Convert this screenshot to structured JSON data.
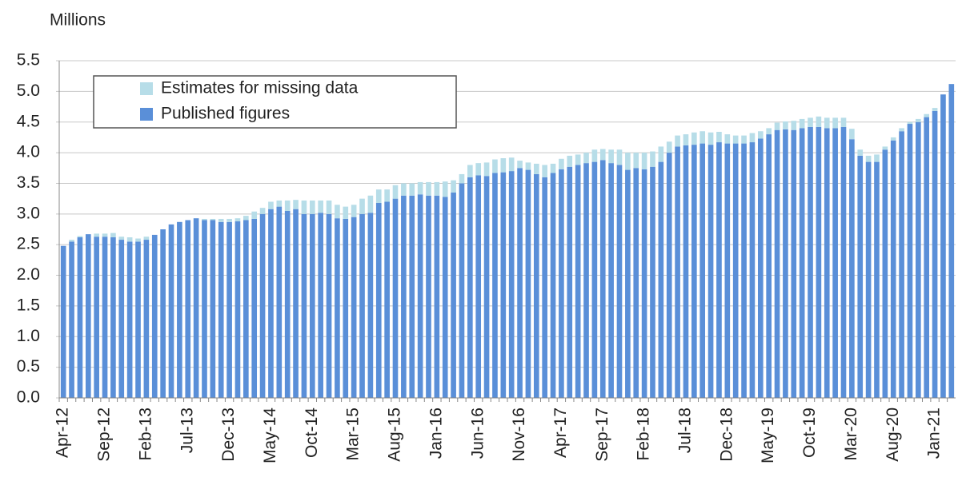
{
  "chart_data": {
    "type": "stacked_bar",
    "y_label": "Millions",
    "categories": [
      "Apr-12",
      null,
      null,
      null,
      null,
      "Sep-12",
      null,
      null,
      null,
      null,
      "Feb-13",
      null,
      null,
      null,
      null,
      "Jul-13",
      null,
      null,
      null,
      null,
      "Dec-13",
      null,
      null,
      null,
      null,
      "May-14",
      null,
      null,
      null,
      null,
      "Oct-14",
      null,
      null,
      null,
      null,
      "Mar-15",
      null,
      null,
      null,
      null,
      "Aug-15",
      null,
      null,
      null,
      null,
      "Jan-16",
      null,
      null,
      null,
      null,
      "Jun-16",
      null,
      null,
      null,
      null,
      "Nov-16",
      null,
      null,
      null,
      null,
      "Apr-17",
      null,
      null,
      null,
      null,
      "Sep-17",
      null,
      null,
      null,
      null,
      "Feb-18",
      null,
      null,
      null,
      null,
      "Jul-18",
      null,
      null,
      null,
      null,
      "Dec-18",
      null,
      null,
      null,
      null,
      "May-19",
      null,
      null,
      null,
      null,
      "Oct-19",
      null,
      null,
      null,
      null,
      "Mar-20",
      null,
      null,
      null,
      null,
      "Aug-20",
      null,
      null,
      null,
      null,
      "Jan-21",
      null,
      null
    ],
    "series": [
      {
        "name": "Published figures",
        "color": "#5a8fd8",
        "values": [
          2.48,
          2.55,
          2.62,
          2.67,
          2.63,
          2.63,
          2.62,
          2.58,
          2.55,
          2.55,
          2.58,
          2.66,
          2.75,
          2.83,
          2.87,
          2.9,
          2.93,
          2.9,
          2.9,
          2.87,
          2.87,
          2.88,
          2.9,
          2.92,
          3.0,
          3.08,
          3.12,
          3.05,
          3.08,
          3.0,
          3.0,
          3.02,
          3.0,
          2.93,
          2.92,
          2.95,
          3.0,
          3.02,
          3.18,
          3.2,
          3.25,
          3.3,
          3.3,
          3.32,
          3.3,
          3.3,
          3.28,
          3.35,
          3.5,
          3.6,
          3.63,
          3.62,
          3.67,
          3.68,
          3.7,
          3.75,
          3.72,
          3.65,
          3.6,
          3.67,
          3.73,
          3.77,
          3.8,
          3.83,
          3.85,
          3.88,
          3.83,
          3.8,
          3.72,
          3.75,
          3.73,
          3.77,
          3.85,
          4.0,
          4.1,
          4.12,
          4.13,
          4.15,
          4.13,
          4.17,
          4.15,
          4.15,
          4.15,
          4.17,
          4.23,
          4.3,
          4.37,
          4.38,
          4.37,
          4.4,
          4.42,
          4.42,
          4.4,
          4.4,
          4.42,
          4.22,
          3.95,
          3.85,
          3.85,
          4.05,
          4.2,
          4.35,
          4.47,
          4.5,
          4.58,
          4.68,
          4.95,
          5.12
        ]
      },
      {
        "name": "Estimates for missing data",
        "color": "#b7dde8",
        "values": [
          0,
          0.03,
          0.02,
          0,
          0.05,
          0.05,
          0.07,
          0.05,
          0.07,
          0.05,
          0.05,
          0,
          0,
          0,
          0,
          0,
          0,
          0.02,
          0.02,
          0.05,
          0.05,
          0.05,
          0.07,
          0.12,
          0.1,
          0.12,
          0.1,
          0.17,
          0.15,
          0.22,
          0.22,
          0.2,
          0.22,
          0.22,
          0.2,
          0.2,
          0.25,
          0.28,
          0.22,
          0.2,
          0.22,
          0.2,
          0.2,
          0.2,
          0.22,
          0.22,
          0.25,
          0.2,
          0.15,
          0.2,
          0.2,
          0.22,
          0.22,
          0.23,
          0.22,
          0.12,
          0.12,
          0.17,
          0.2,
          0.15,
          0.17,
          0.18,
          0.17,
          0.17,
          0.2,
          0.18,
          0.22,
          0.25,
          0.28,
          0.25,
          0.27,
          0.25,
          0.25,
          0.18,
          0.18,
          0.18,
          0.2,
          0.2,
          0.2,
          0.17,
          0.15,
          0.13,
          0.13,
          0.15,
          0.12,
          0.1,
          0.12,
          0.13,
          0.15,
          0.15,
          0.15,
          0.17,
          0.17,
          0.17,
          0.15,
          0.17,
          0.1,
          0.1,
          0.12,
          0.05,
          0.05,
          0.05,
          0.03,
          0.05,
          0.05,
          0.05,
          0,
          0
        ]
      }
    ],
    "ylim": [
      0,
      5.5
    ],
    "yticks": [
      {
        "value": 0,
        "label": "0.0"
      },
      0.5,
      {
        "value": 1,
        "label": "1.0"
      },
      1.5,
      {
        "value": 2,
        "label": "2.0"
      },
      2.5,
      {
        "value": 3,
        "label": "3.0"
      },
      3.5,
      {
        "value": 4,
        "label": "4.0"
      },
      4.5,
      {
        "value": 5,
        "label": "5.0"
      },
      5.5
    ],
    "grid": true,
    "legend": "upper left"
  }
}
